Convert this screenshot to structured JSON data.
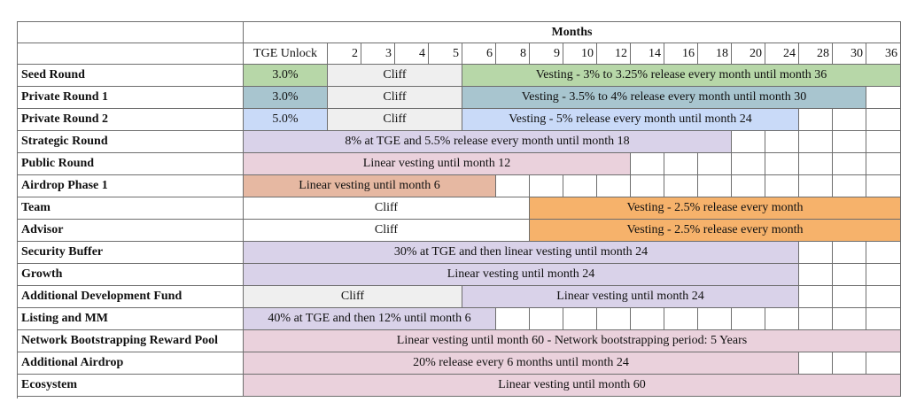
{
  "header": {
    "months_label": "Months",
    "columns": [
      "TGE Unlock",
      "2",
      "3",
      "4",
      "5",
      "6",
      "8",
      "9",
      "10",
      "12",
      "14",
      "16",
      "18",
      "20",
      "24",
      "28",
      "30",
      "36"
    ]
  },
  "colors": {
    "green": "#b7d7a8",
    "teal": "#a8c5cf",
    "blue": "#c9daf8",
    "gray": "#efefef",
    "lavender": "#d9d2e9",
    "pink": "#ead1dc",
    "salmon": "#e6b8a2",
    "orange": "#f6b26b",
    "white": "#ffffff"
  },
  "rows": [
    {
      "label": "Seed Round",
      "segments": [
        {
          "span": [
            0,
            0
          ],
          "text": "3.0%",
          "color": "green"
        },
        {
          "span": [
            1,
            4
          ],
          "text": "Cliff",
          "color": "gray"
        },
        {
          "span": [
            5,
            17
          ],
          "text": "Vesting - 3% to 3.25% release every month until month 36",
          "color": "green"
        }
      ]
    },
    {
      "label": "Private Round 1",
      "segments": [
        {
          "span": [
            0,
            0
          ],
          "text": "3.0%",
          "color": "teal"
        },
        {
          "span": [
            1,
            4
          ],
          "text": "Cliff",
          "color": "gray"
        },
        {
          "span": [
            5,
            16
          ],
          "text": "Vesting - 3.5%  to 4% release every month until month 30",
          "color": "teal"
        }
      ]
    },
    {
      "label": "Private Round 2",
      "segments": [
        {
          "span": [
            0,
            0
          ],
          "text": "5.0%",
          "color": "blue"
        },
        {
          "span": [
            1,
            4
          ],
          "text": "Cliff",
          "color": "gray"
        },
        {
          "span": [
            5,
            14
          ],
          "text": "Vesting - 5% release every month until month 24",
          "color": "blue"
        }
      ]
    },
    {
      "label": "Strategic Round",
      "segments": [
        {
          "span": [
            0,
            12
          ],
          "text": "8% at TGE and 5.5% release every month until month 18",
          "color": "lavender"
        }
      ]
    },
    {
      "label": "Public Round",
      "segments": [
        {
          "span": [
            0,
            9
          ],
          "text": "Linear vesting until month 12",
          "color": "pink"
        }
      ]
    },
    {
      "label": "Airdrop Phase 1",
      "segments": [
        {
          "span": [
            0,
            5
          ],
          "text": "Linear vesting until month 6",
          "color": "salmon"
        }
      ]
    },
    {
      "label": "Team",
      "segments": [
        {
          "span": [
            0,
            6
          ],
          "text": "Cliff",
          "color": "white"
        },
        {
          "span": [
            7,
            17
          ],
          "text": "Vesting - 2.5% release every month",
          "color": "orange"
        }
      ]
    },
    {
      "label": "Advisor",
      "segments": [
        {
          "span": [
            0,
            6
          ],
          "text": "Cliff",
          "color": "white"
        },
        {
          "span": [
            7,
            17
          ],
          "text": "Vesting - 2.5% release every month",
          "color": "orange"
        }
      ]
    },
    {
      "label": "Security Buffer",
      "segments": [
        {
          "span": [
            0,
            14
          ],
          "text": "30% at TGE and then linear vesting until month 24",
          "color": "lavender"
        }
      ]
    },
    {
      "label": "Growth",
      "segments": [
        {
          "span": [
            0,
            14
          ],
          "text": "Linear vesting until month 24",
          "color": "lavender"
        }
      ]
    },
    {
      "label": "Additional Development Fund",
      "segments": [
        {
          "span": [
            0,
            4
          ],
          "text": "Cliff",
          "color": "gray"
        },
        {
          "span": [
            5,
            14
          ],
          "text": "Linear vesting until month 24",
          "color": "lavender"
        }
      ]
    },
    {
      "label": "Listing and MM",
      "segments": [
        {
          "span": [
            0,
            5
          ],
          "text": "40% at TGE and then 12% until month 6",
          "color": "lavender"
        }
      ]
    },
    {
      "label": "Network Bootstrapping Reward Pool",
      "segments": [
        {
          "span": [
            0,
            17
          ],
          "text": "Linear vesting until month 60 - Network bootstrapping period: 5 Years",
          "color": "pink"
        }
      ]
    },
    {
      "label": "Additional Airdrop",
      "segments": [
        {
          "span": [
            0,
            14
          ],
          "text": "20% release every 6 months until month 24",
          "color": "pink"
        }
      ]
    },
    {
      "label": "Ecosystem",
      "segments": [
        {
          "span": [
            0,
            17
          ],
          "text": "Linear vesting until month 60",
          "color": "pink"
        }
      ]
    }
  ]
}
